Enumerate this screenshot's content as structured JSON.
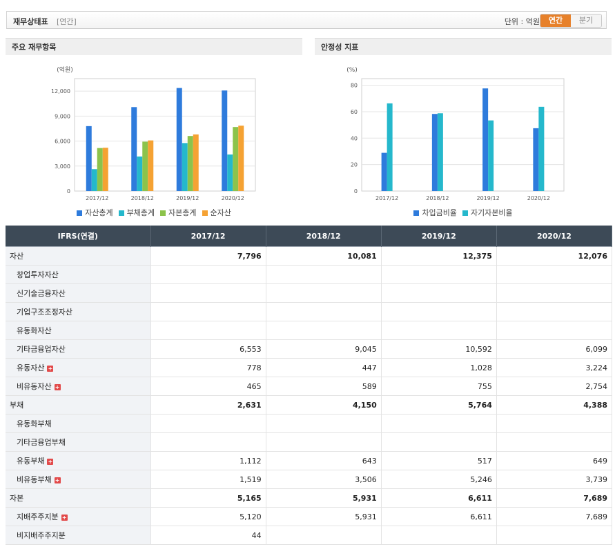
{
  "header": {
    "title": "재무상태표",
    "period_tag": "[연간]",
    "unit_label": "단위 : 억원",
    "toggle": [
      "연간",
      "분기"
    ],
    "active_toggle": "연간"
  },
  "colors": {
    "asset": "#2e7bdc",
    "liability": "#25b8cc",
    "equity": "#8cc34b",
    "net_asset": "#f5a233",
    "debt_ratio": "#2e7bdc",
    "equity_ratio": "#25b8cc",
    "accent": "#e7812b",
    "table_header": "#3d4a57"
  },
  "left_panel": {
    "title": "주요 재무항목"
  },
  "right_panel": {
    "title": "안정성 지표"
  },
  "chart_data": [
    {
      "type": "bar",
      "title": "",
      "ylabel": "(억원)",
      "categories": [
        "2017/12",
        "2018/12",
        "2019/12",
        "2020/12"
      ],
      "yticks": [
        "0",
        "3,000",
        "6,000",
        "9,000",
        "12,000"
      ],
      "ylim": [
        0,
        13500
      ],
      "grid": true,
      "legend": "bottom",
      "series": [
        {
          "name": "자산총계",
          "color": "#2e7bdc",
          "values": [
            7796,
            10081,
            12375,
            12076
          ]
        },
        {
          "name": "부채총계",
          "color": "#25b8cc",
          "values": [
            2631,
            4150,
            5764,
            4388
          ]
        },
        {
          "name": "자본총계",
          "color": "#8cc34b",
          "values": [
            5165,
            5931,
            6611,
            7689
          ]
        },
        {
          "name": "순자산",
          "color": "#f5a233",
          "values": [
            5200,
            6080,
            6800,
            7850
          ]
        }
      ]
    },
    {
      "type": "bar",
      "title": "",
      "ylabel": "(%)",
      "categories": [
        "2017/12",
        "2018/12",
        "2019/12",
        "2020/12"
      ],
      "yticks": [
        "0",
        "20",
        "40",
        "60",
        "80"
      ],
      "ylim": [
        0,
        85
      ],
      "grid": true,
      "legend": "bottom",
      "series": [
        {
          "name": "차입금비율",
          "color": "#2e7bdc",
          "values": [
            28.9,
            58.3,
            77.6,
            47.5
          ]
        },
        {
          "name": "자기자본비율",
          "color": "#25b8cc",
          "values": [
            66.3,
            58.8,
            53.4,
            63.7
          ]
        }
      ]
    }
  ],
  "table": {
    "header": [
      "IFRS(연결)",
      "2017/12",
      "2018/12",
      "2019/12",
      "2020/12"
    ],
    "rows": [
      {
        "label": "자산",
        "level": "major",
        "plus": false,
        "values": [
          "7,796",
          "10,081",
          "12,375",
          "12,076"
        ]
      },
      {
        "label": "창업투자자산",
        "level": "sub",
        "plus": false,
        "values": [
          "",
          "",
          "",
          ""
        ]
      },
      {
        "label": "신기술금융자산",
        "level": "sub",
        "plus": false,
        "values": [
          "",
          "",
          "",
          ""
        ]
      },
      {
        "label": "기업구조조정자산",
        "level": "sub",
        "plus": false,
        "values": [
          "",
          "",
          "",
          ""
        ]
      },
      {
        "label": "유동화자산",
        "level": "sub",
        "plus": false,
        "values": [
          "",
          "",
          "",
          ""
        ]
      },
      {
        "label": "기타금융업자산",
        "level": "sub",
        "plus": false,
        "values": [
          "6,553",
          "9,045",
          "10,592",
          "6,099"
        ]
      },
      {
        "label": "유동자산",
        "level": "sub",
        "plus": true,
        "values": [
          "778",
          "447",
          "1,028",
          "3,224"
        ]
      },
      {
        "label": "비유동자산",
        "level": "sub",
        "plus": true,
        "values": [
          "465",
          "589",
          "755",
          "2,754"
        ]
      },
      {
        "label": "부채",
        "level": "major",
        "plus": false,
        "values": [
          "2,631",
          "4,150",
          "5,764",
          "4,388"
        ]
      },
      {
        "label": "유동화부채",
        "level": "sub",
        "plus": false,
        "values": [
          "",
          "",
          "",
          ""
        ]
      },
      {
        "label": "기타금융업부채",
        "level": "sub",
        "plus": false,
        "values": [
          "",
          "",
          "",
          ""
        ]
      },
      {
        "label": "유동부채",
        "level": "sub",
        "plus": true,
        "values": [
          "1,112",
          "643",
          "517",
          "649"
        ]
      },
      {
        "label": "비유동부채",
        "level": "sub",
        "plus": true,
        "values": [
          "1,519",
          "3,506",
          "5,246",
          "3,739"
        ]
      },
      {
        "label": "자본",
        "level": "major",
        "plus": false,
        "values": [
          "5,165",
          "5,931",
          "6,611",
          "7,689"
        ]
      },
      {
        "label": "지배주주지분",
        "level": "sub",
        "plus": true,
        "values": [
          "5,120",
          "5,931",
          "6,611",
          "7,689"
        ]
      },
      {
        "label": "비지배주주지분",
        "level": "sub",
        "plus": false,
        "values": [
          "44",
          "",
          "",
          ""
        ]
      }
    ]
  }
}
